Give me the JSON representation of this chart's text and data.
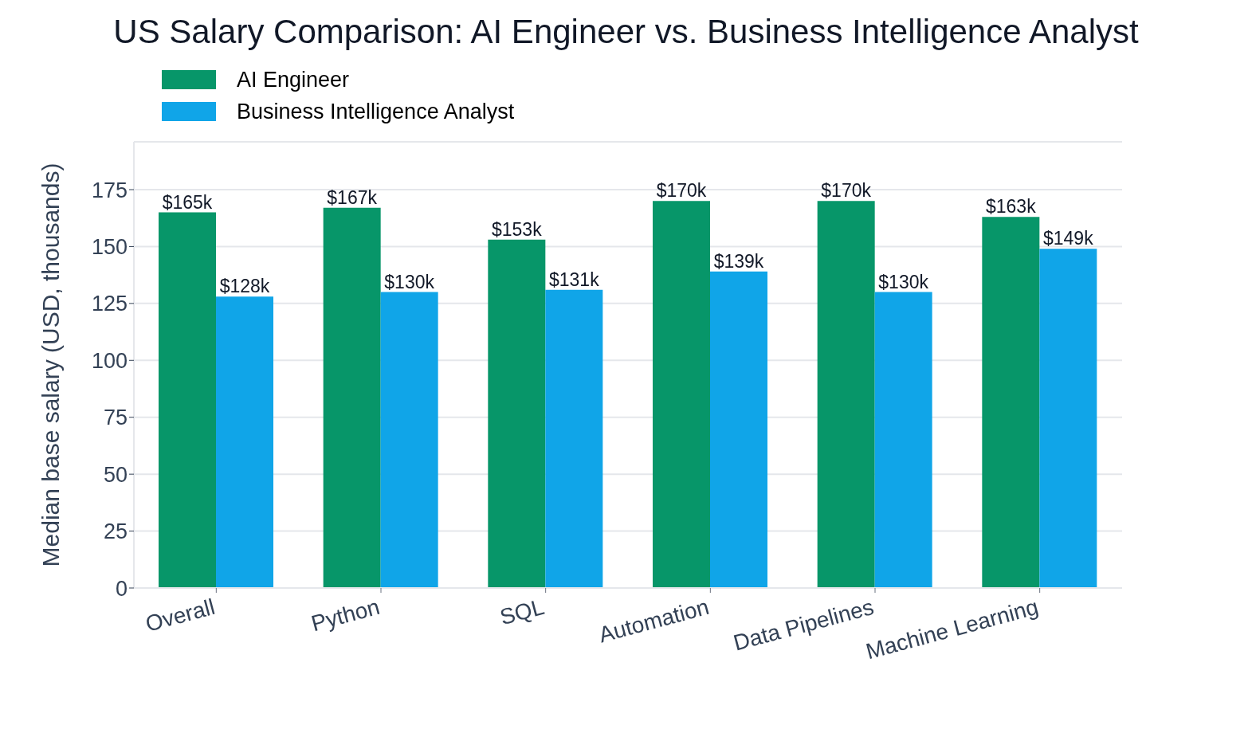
{
  "chart_data": {
    "type": "bar",
    "title": "US Salary Comparison: AI Engineer vs. Business Intelligence Analyst",
    "ylabel": "Median base salary (USD, thousands)",
    "categories": [
      "Overall",
      "Python",
      "SQL",
      "Automation",
      "Data Pipelines",
      "Machine Learning"
    ],
    "series": [
      {
        "name": "AI Engineer",
        "color": "#079669",
        "values": [
          165,
          167,
          153,
          170,
          170,
          163
        ],
        "value_labels": [
          "$165k",
          "$167k",
          "$153k",
          "$170k",
          "$170k",
          "$163k"
        ]
      },
      {
        "name": "Business Intelligence Analyst",
        "color": "#10a5e8",
        "values": [
          128,
          130,
          131,
          139,
          130,
          149
        ],
        "value_labels": [
          "$128k",
          "$130k",
          "$131k",
          "$139k",
          "$130k",
          "$149k"
        ]
      }
    ],
    "ylim": [
      0,
      196
    ],
    "yticks": [
      0,
      25,
      50,
      75,
      100,
      125,
      150,
      175
    ],
    "grid": "y",
    "legend": "top left"
  }
}
